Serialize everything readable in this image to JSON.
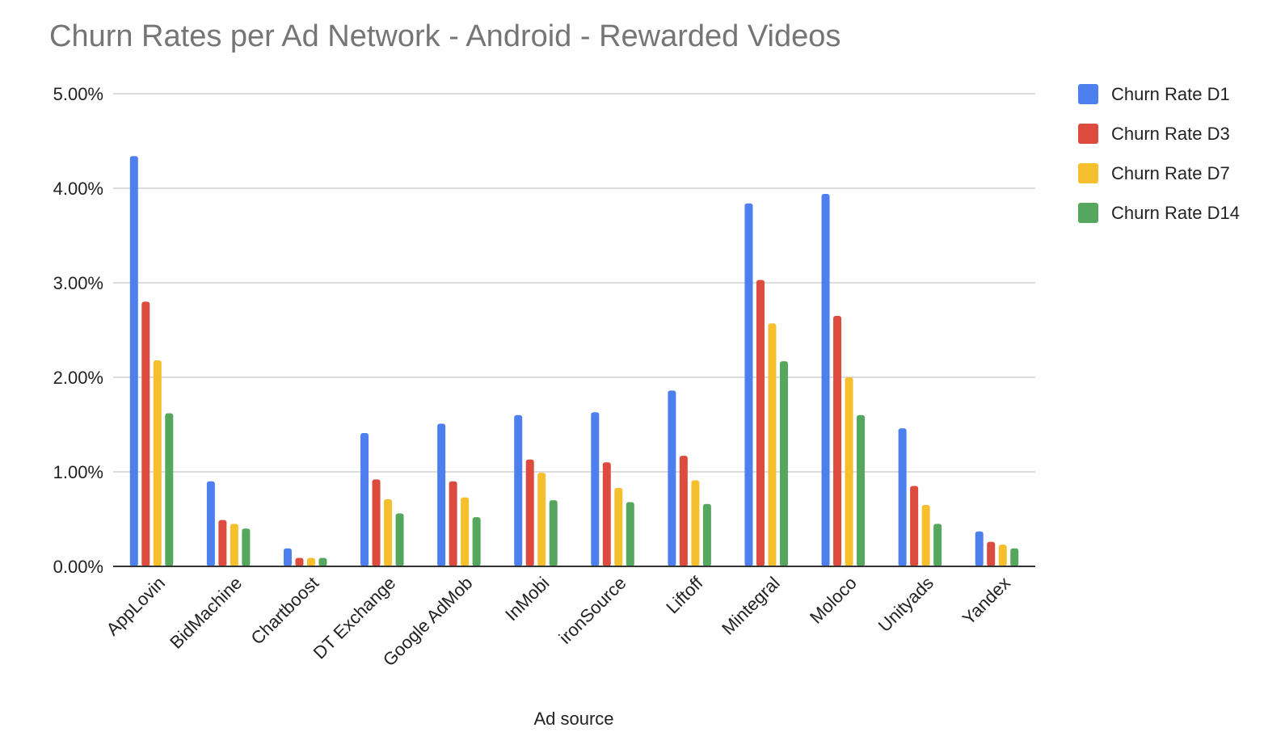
{
  "chart_data": {
    "type": "bar",
    "title": "Churn Rates per Ad Network - Android - Rewarded Videos",
    "xlabel": "Ad source",
    "ylabel": "",
    "ylim": [
      0,
      0.05
    ],
    "yticks": [
      "0.00%",
      "1.00%",
      "2.00%",
      "3.00%",
      "4.00%",
      "5.00%"
    ],
    "grid": true,
    "legend_position": "right",
    "categories": [
      "AppLovin",
      "BidMachine",
      "Chartboost",
      "DT Exchange",
      "Google AdMob",
      "InMobi",
      "ironSource",
      "Liftoff",
      "Mintegral",
      "Moloco",
      "Unityads",
      "Yandex"
    ],
    "series": [
      {
        "name": "Churn Rate D1",
        "color": "#4e7fee",
        "values": [
          0.0434,
          0.009,
          0.0019,
          0.0141,
          0.0151,
          0.016,
          0.0163,
          0.0186,
          0.0384,
          0.0394,
          0.0146,
          0.0037
        ]
      },
      {
        "name": "Churn Rate D3",
        "color": "#dc4b3e",
        "values": [
          0.028,
          0.0049,
          0.0009,
          0.0092,
          0.009,
          0.0113,
          0.011,
          0.0117,
          0.0303,
          0.0265,
          0.0085,
          0.0026
        ]
      },
      {
        "name": "Churn Rate D7",
        "color": "#f6bf2e",
        "values": [
          0.0218,
          0.0045,
          0.0009,
          0.0071,
          0.0073,
          0.0099,
          0.0083,
          0.0091,
          0.0257,
          0.02,
          0.0065,
          0.0023
        ]
      },
      {
        "name": "Churn Rate D14",
        "color": "#54a75c",
        "values": [
          0.0162,
          0.004,
          0.0009,
          0.0056,
          0.0052,
          0.007,
          0.0068,
          0.0066,
          0.0217,
          0.016,
          0.0045,
          0.0019
        ]
      }
    ]
  }
}
